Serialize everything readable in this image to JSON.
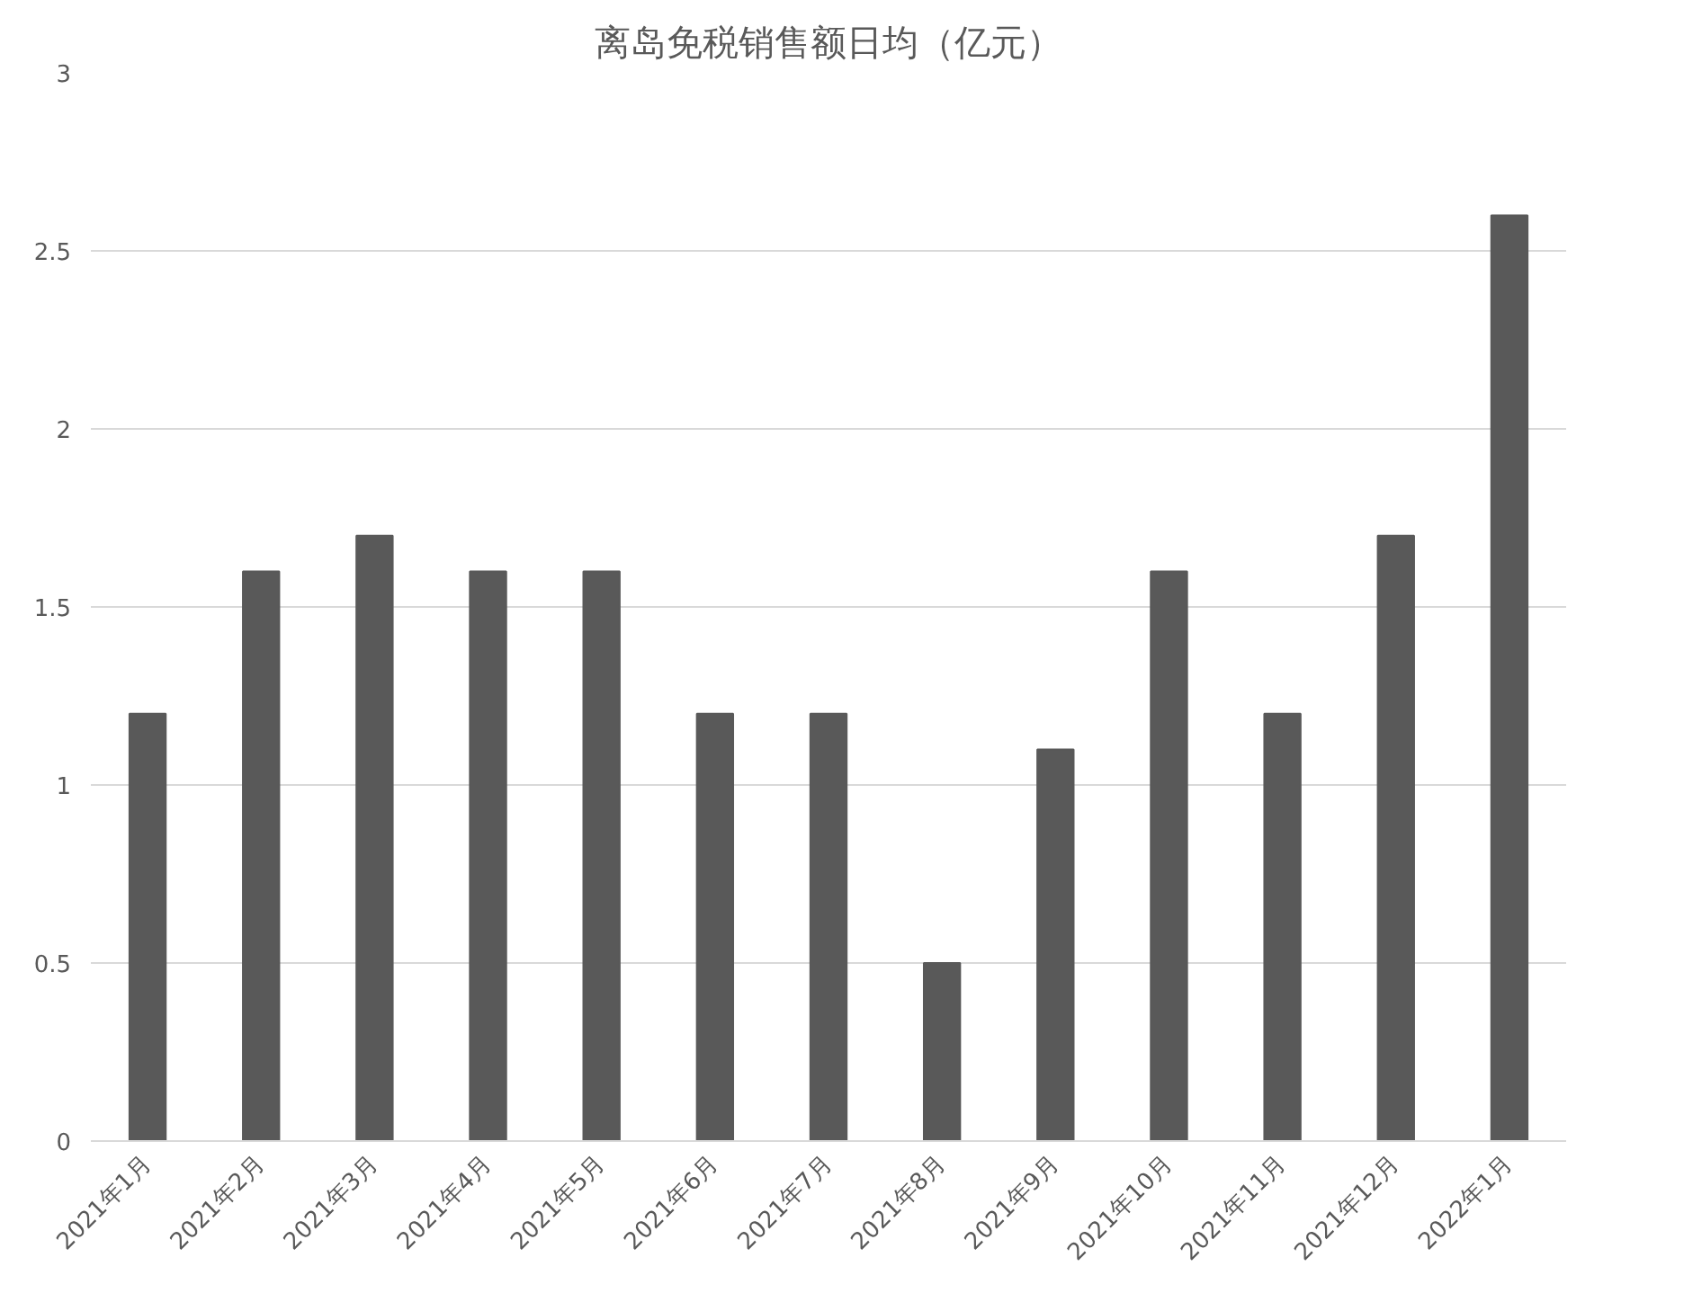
{
  "chart_data": {
    "type": "bar",
    "title": "离岛免税销售额日均（亿元）",
    "categories": [
      "2021年1月",
      "2021年2月",
      "2021年3月",
      "2021年4月",
      "2021年5月",
      "2021年6月",
      "2021年7月",
      "2021年8月",
      "2021年9月",
      "2021年10月",
      "2021年11月",
      "2021年12月",
      "2022年1月"
    ],
    "values": [
      1.2,
      1.6,
      1.7,
      1.6,
      1.6,
      1.2,
      1.2,
      0.5,
      1.1,
      1.6,
      1.2,
      1.7,
      2.6
    ],
    "color": "#595959",
    "ylim": [
      0,
      3
    ],
    "yticks": [
      0,
      0.5,
      1,
      1.5,
      2,
      2.5,
      3
    ],
    "grid": "y"
  }
}
